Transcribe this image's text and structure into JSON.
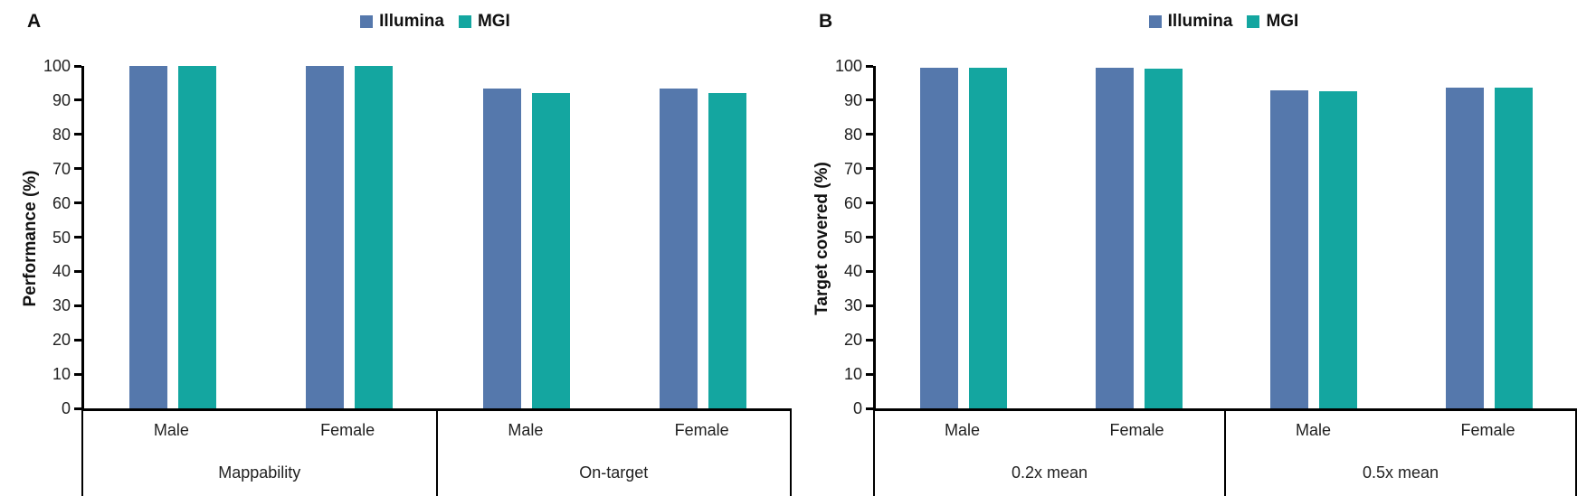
{
  "figure_title": "",
  "legend": {
    "items": [
      {
        "name": "Illumina",
        "color": "#5578AC"
      },
      {
        "name": "MGI",
        "color": "#14A6A0"
      }
    ]
  },
  "chart_data": [
    {
      "type": "bar",
      "panel_label": "A",
      "title": "",
      "xlabel": "",
      "ylabel": "Performance (%)",
      "ylim": [
        0,
        100
      ],
      "ytick_step": 10,
      "grid": false,
      "legend_position": "top-center",
      "group_labels": [
        "Mappability",
        "On-target"
      ],
      "categories": [
        "Male",
        "Female",
        "Male",
        "Female"
      ],
      "series": [
        {
          "name": "Illumina",
          "color": "#5578AC",
          "values": [
            100,
            100,
            93.5,
            93.5
          ]
        },
        {
          "name": "MGI",
          "color": "#14A6A0",
          "values": [
            100,
            100,
            92.1,
            92.2
          ]
        }
      ]
    },
    {
      "type": "bar",
      "panel_label": "B",
      "title": "",
      "xlabel": "",
      "ylabel": "Target covered (%)",
      "ylim": [
        0,
        100
      ],
      "ytick_step": 10,
      "grid": false,
      "legend_position": "top-center",
      "group_labels": [
        "0.2x mean",
        "0.5x mean"
      ],
      "categories": [
        "Male",
        "Female",
        "Male",
        "Female"
      ],
      "series": [
        {
          "name": "Illumina",
          "color": "#5578AC",
          "values": [
            99.6,
            99.6,
            93.0,
            93.8
          ]
        },
        {
          "name": "MGI",
          "color": "#14A6A0",
          "values": [
            99.4,
            99.3,
            92.7,
            93.8
          ]
        }
      ]
    }
  ]
}
